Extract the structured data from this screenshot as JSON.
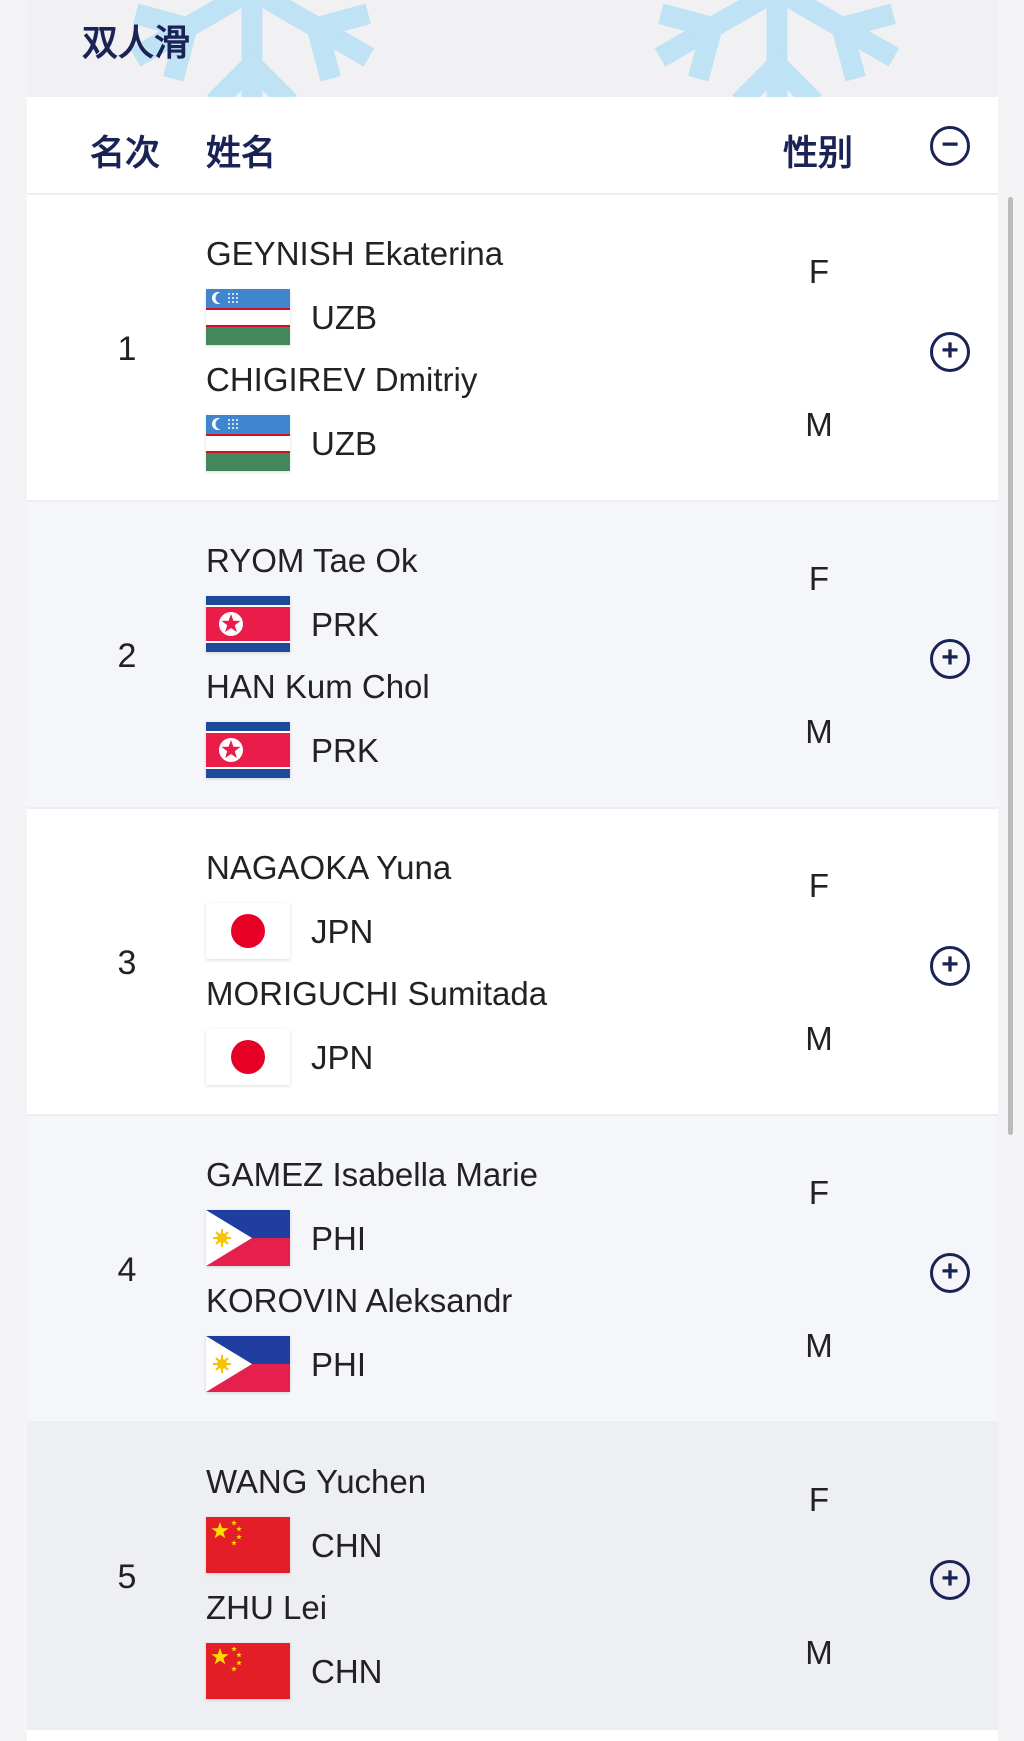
{
  "header": {
    "title": "双人滑"
  },
  "columns": {
    "rank": "名次",
    "name": "姓名",
    "gender": "性别",
    "collapse_icon": "minus-circle-icon"
  },
  "rows": [
    {
      "rank": "1",
      "athletes": [
        {
          "name": "GEYNISH Ekaterina",
          "noc": "UZB",
          "gender": "F"
        },
        {
          "name": "CHIGIREV Dmitriy",
          "noc": "UZB",
          "gender": "M"
        }
      ]
    },
    {
      "rank": "2",
      "athletes": [
        {
          "name": "RYOM Tae Ok",
          "noc": "PRK",
          "gender": "F"
        },
        {
          "name": "HAN Kum Chol",
          "noc": "PRK",
          "gender": "M"
        }
      ]
    },
    {
      "rank": "3",
      "athletes": [
        {
          "name": "NAGAOKA Yuna",
          "noc": "JPN",
          "gender": "F"
        },
        {
          "name": "MORIGUCHI Sumitada",
          "noc": "JPN",
          "gender": "M"
        }
      ]
    },
    {
      "rank": "4",
      "athletes": [
        {
          "name": "GAMEZ Isabella Marie",
          "noc": "PHI",
          "gender": "F"
        },
        {
          "name": "KOROVIN Aleksandr",
          "noc": "PHI",
          "gender": "M"
        }
      ]
    },
    {
      "rank": "5",
      "athletes": [
        {
          "name": "WANG Yuchen",
          "noc": "CHN",
          "gender": "F"
        },
        {
          "name": "ZHU Lei",
          "noc": "CHN",
          "gender": "M"
        }
      ]
    }
  ],
  "colors": {
    "accent": "#1a2355",
    "snowflake": "#bfe3f4",
    "row_alt": "#f5f6fa"
  }
}
